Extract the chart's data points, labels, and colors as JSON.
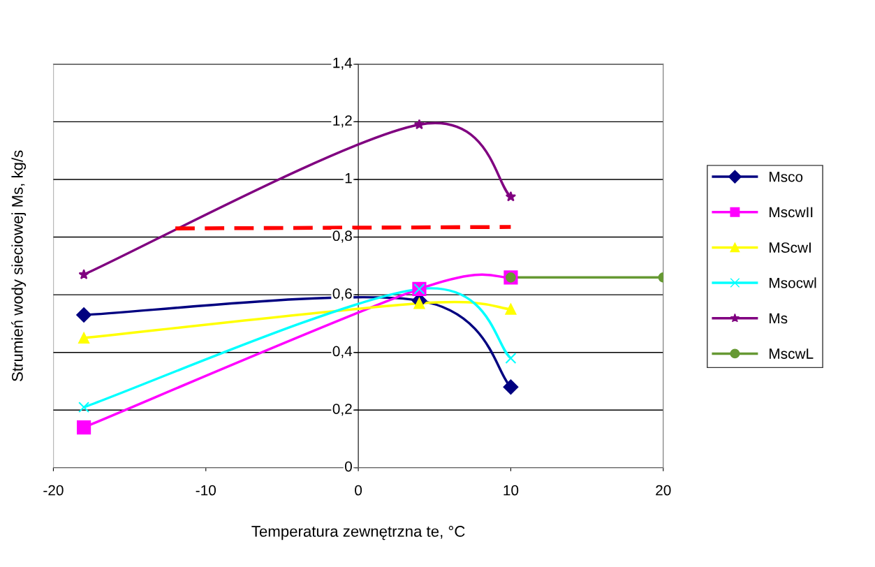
{
  "chart_data": {
    "type": "line",
    "xlabel": "Temperatura zewnętrzna te, °C",
    "ylabel": "Strumień wody sieciowej Ms, kg/s",
    "xlim": [
      -20,
      20
    ],
    "xticks": [
      -20,
      -10,
      0,
      10,
      20
    ],
    "ylim": [
      0,
      1.4
    ],
    "yticks": [
      0,
      {
        "value": 0.2,
        "label": "0,2"
      },
      {
        "value": 0.4,
        "label": "0,4"
      },
      {
        "value": 0.6,
        "label": "0,6"
      },
      {
        "value": 0.8,
        "label": "0,8"
      },
      1,
      {
        "value": 1.2,
        "label": "1,2"
      },
      {
        "value": 1.4,
        "label": "1,4"
      }
    ],
    "grid": "y",
    "legend": "right",
    "series": [
      {
        "name": "Msco",
        "color": "#000080",
        "marker": "diamond",
        "x": [
          -18,
          4,
          10
        ],
        "values": [
          0.53,
          0.58,
          0.28
        ]
      },
      {
        "name": "MscwII",
        "color": "#ff00ff",
        "marker": "square",
        "x": [
          -18,
          4,
          10
        ],
        "values": [
          0.14,
          0.62,
          0.66
        ]
      },
      {
        "name": "MScwI",
        "color": "#ffff00",
        "marker": "triangle",
        "x": [
          -18,
          4,
          10
        ],
        "values": [
          0.45,
          0.57,
          0.55
        ]
      },
      {
        "name": "Msocwl",
        "color": "#00ffff",
        "marker": "cross",
        "x": [
          -18,
          4,
          10
        ],
        "values": [
          0.21,
          0.62,
          0.38
        ]
      },
      {
        "name": "Ms",
        "color": "#800080",
        "marker": "star",
        "x": [
          -18,
          4,
          10
        ],
        "values": [
          0.67,
          1.19,
          0.94
        ]
      },
      {
        "name": "MscwL",
        "color": "#669933",
        "marker": "circle",
        "x": [
          10,
          20
        ],
        "values": [
          0.66,
          0.66
        ]
      },
      {
        "color": "#ff0000",
        "marker": "none",
        "line_style": "dashed",
        "x": [
          -12,
          10
        ],
        "values": [
          0.83,
          0.835
        ]
      }
    ]
  }
}
